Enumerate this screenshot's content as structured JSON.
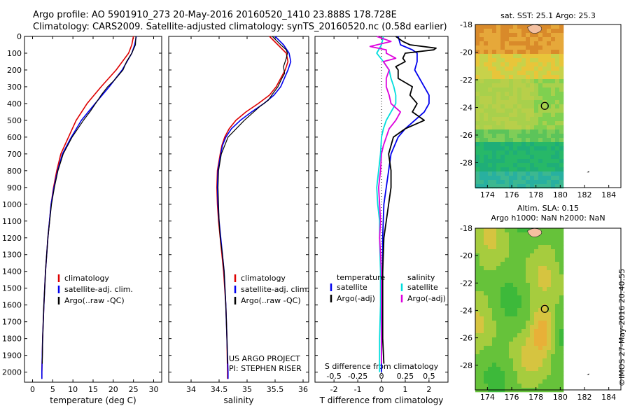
{
  "header": {
    "line1": "Argo profile: AO 5901910_273 20-May-2016 20160520_1410 23.888S 178.728E",
    "line2": "Climatology: CARS2009. Satellite-adjusted climatology: synTS_20160520.nc (0.58d earlier)"
  },
  "depth_ticks": [
    "0",
    "100",
    "200",
    "300",
    "400",
    "500",
    "600",
    "700",
    "800",
    "900",
    "1000",
    "1100",
    "1200",
    "1300",
    "1400",
    "1500",
    "1600",
    "1700",
    "1800",
    "1900",
    "2000"
  ],
  "colors": {
    "climatology": "#dd0000",
    "satellite": "#0000ee",
    "argo": "#000000",
    "sat_s": "#00dddd",
    "argo_s": "#dd00dd"
  },
  "chart_data": [
    {
      "type": "line",
      "xlabel": "temperature (deg C)",
      "xticks": [
        "0",
        "5",
        "10",
        "15",
        "20",
        "25",
        "30"
      ],
      "xlim": [
        -2,
        32
      ],
      "ylim": [
        2060,
        0
      ],
      "legend": [
        "climatology",
        "satellite-adj. clim.",
        "Argo(..raw -QC)"
      ],
      "series": [
        {
          "name": "climatology",
          "depth": [
            0,
            50,
            100,
            200,
            300,
            400,
            500,
            600,
            700,
            800,
            900,
            1000,
            1200,
            1400,
            1600,
            1800,
            2000,
            2040
          ],
          "values": [
            25.0,
            24.6,
            23.8,
            20.7,
            17.0,
            13.5,
            10.8,
            8.9,
            7.0,
            6.0,
            5.2,
            4.6,
            3.8,
            3.2,
            2.8,
            2.5,
            2.3,
            2.3
          ]
        },
        {
          "name": "satellite-adj. clim.",
          "depth": [
            0,
            50,
            100,
            200,
            300,
            400,
            500,
            600,
            700,
            800,
            900,
            1000,
            1200,
            1400,
            1600,
            1800,
            2000,
            2040
          ],
          "values": [
            25.7,
            25.3,
            24.6,
            22.2,
            19.0,
            15.5,
            12.1,
            9.6,
            7.4,
            6.2,
            5.3,
            4.6,
            3.8,
            3.2,
            2.8,
            2.5,
            2.3,
            2.3
          ]
        },
        {
          "name": "Argo(..raw -QC)",
          "depth": [
            0,
            50,
            100,
            150,
            200,
            260,
            300,
            350,
            400,
            450,
            500,
            600,
            700,
            800,
            900,
            1000,
            1200,
            1400,
            1600,
            1800,
            1950
          ],
          "values": [
            25.6,
            25.5,
            24.6,
            23.3,
            22.4,
            20.3,
            18.6,
            17.0,
            15.6,
            14.2,
            12.6,
            9.8,
            7.6,
            6.3,
            5.4,
            4.7,
            3.8,
            3.2,
            2.8,
            2.5,
            2.4
          ]
        }
      ]
    },
    {
      "type": "line",
      "xlabel": "salinity",
      "xticks": [
        "34",
        "34.5",
        "35",
        "35.5",
        "36"
      ],
      "xlim": [
        33.6,
        36.1
      ],
      "ylim": [
        2060,
        0
      ],
      "legend": [
        "climatology",
        "satellite-adj. clim.",
        "Argo(..raw -QC)"
      ],
      "annotation": [
        "US ARGO PROJECT",
        "PI: STEPHEN RISER"
      ],
      "series": [
        {
          "name": "climatology",
          "depth": [
            0,
            50,
            100,
            150,
            200,
            300,
            350,
            400,
            450,
            500,
            550,
            600,
            650,
            700,
            800,
            900,
            1000,
            1100,
            1200,
            1300,
            1400,
            1600,
            1800,
            2000,
            2040
          ],
          "values": [
            35.4,
            35.55,
            35.7,
            35.73,
            35.68,
            35.52,
            35.4,
            35.2,
            34.98,
            34.8,
            34.68,
            34.6,
            34.55,
            34.52,
            34.47,
            34.46,
            34.47,
            34.49,
            34.52,
            34.55,
            34.58,
            34.62,
            34.64,
            34.65,
            34.65
          ]
        },
        {
          "name": "satellite-adj. clim.",
          "depth": [
            0,
            50,
            100,
            150,
            200,
            300,
            350,
            400,
            450,
            500,
            550,
            600,
            650,
            700,
            800,
            900,
            1000,
            1100,
            1200,
            1300,
            1400,
            1600,
            1800,
            2000,
            2040
          ],
          "values": [
            35.5,
            35.65,
            35.75,
            35.78,
            35.73,
            35.6,
            35.48,
            35.3,
            35.08,
            34.88,
            34.72,
            34.62,
            34.56,
            34.53,
            34.48,
            34.47,
            34.48,
            34.5,
            34.53,
            34.56,
            34.59,
            34.62,
            34.64,
            34.66,
            34.66
          ]
        },
        {
          "name": "Argo(..raw -QC)",
          "depth": [
            0,
            50,
            80,
            100,
            130,
            180,
            220,
            250,
            300,
            350,
            380,
            420,
            500,
            600,
            700,
            800,
            900,
            1000,
            1100,
            1200,
            1300,
            1400,
            1600,
            1800,
            1950
          ],
          "values": [
            35.45,
            35.6,
            35.7,
            35.72,
            35.7,
            35.65,
            35.67,
            35.62,
            35.55,
            35.44,
            35.38,
            35.22,
            34.95,
            34.66,
            34.54,
            34.49,
            34.48,
            34.49,
            34.5,
            34.52,
            34.56,
            34.59,
            34.62,
            34.64,
            34.65
          ]
        }
      ]
    },
    {
      "type": "line",
      "xlabel": "T difference from climatology",
      "xlabel2": "S difference from climatology",
      "xticks": [
        "-2",
        "-1",
        "0",
        "1",
        "2"
      ],
      "xticks2": [
        "-0.5",
        "-0.25",
        "0",
        "0.25",
        "0.5"
      ],
      "xlim": [
        -2.8,
        2.8
      ],
      "ylim": [
        2060,
        0
      ],
      "legend_left_title": "temperature",
      "legend_right_title": "salinity",
      "legend": [
        "satellite",
        "Argo(-adj)",
        "satellite",
        "Argo(-adj)"
      ],
      "series": [
        {
          "name": "satellite",
          "depth": [
            0,
            50,
            80,
            100,
            150,
            200,
            300,
            350,
            400,
            450,
            500,
            550,
            600,
            700,
            800,
            900,
            1000,
            1200,
            1400,
            1600,
            1800,
            2000
          ],
          "values": [
            0.7,
            0.8,
            1.3,
            1.5,
            1.5,
            1.4,
            1.8,
            2.0,
            2.0,
            1.8,
            1.4,
            1.0,
            0.7,
            0.4,
            0.3,
            0.2,
            0.1,
            0.05,
            0.05,
            0.0,
            0.0,
            0.0
          ]
        },
        {
          "name": "Argo(-adj)",
          "depth": [
            0,
            30,
            50,
            70,
            80,
            100,
            130,
            150,
            180,
            200,
            250,
            300,
            350,
            400,
            450,
            500,
            550,
            600,
            650,
            700,
            800,
            900,
            1000,
            1100,
            1200,
            1400,
            1600,
            1800,
            1950
          ],
          "values": [
            0.6,
            0.9,
            1.2,
            2.3,
            2.2,
            1.0,
            0.9,
            1.0,
            0.6,
            0.7,
            0.7,
            1.3,
            1.2,
            1.5,
            1.3,
            1.8,
            1.0,
            0.5,
            0.4,
            0.3,
            0.4,
            0.4,
            0.3,
            0.2,
            0.1,
            0.05,
            0.05,
            0.05,
            0.1
          ]
        },
        {
          "name": "satellite",
          "depth": [
            0,
            50,
            100,
            150,
            200,
            250,
            300,
            350,
            400,
            450,
            500,
            550,
            600,
            700,
            800,
            900,
            1000,
            1100,
            1200,
            1400,
            1600,
            1800,
            2000
          ],
          "values": [
            0.02,
            0.0,
            -0.05,
            0.02,
            0.08,
            0.1,
            0.13,
            0.15,
            0.15,
            0.1,
            0.05,
            0.02,
            0.0,
            -0.01,
            -0.03,
            -0.05,
            -0.04,
            -0.02,
            -0.02,
            -0.01,
            -0.01,
            -0.02,
            -0.02
          ]
        },
        {
          "name": "Argo(-adj)",
          "depth": [
            0,
            30,
            60,
            80,
            100,
            130,
            150,
            200,
            250,
            300,
            350,
            400,
            450,
            500,
            550,
            600,
            650,
            700,
            800,
            900,
            1000,
            1100,
            1200,
            1400,
            1600,
            1800,
            1950
          ],
          "values": [
            -0.05,
            0.1,
            -0.12,
            0.05,
            0.05,
            0.15,
            0.02,
            0.08,
            0.05,
            0.05,
            0.08,
            0.1,
            0.2,
            0.15,
            0.08,
            0.05,
            0.02,
            0.0,
            -0.01,
            -0.03,
            -0.02,
            -0.01,
            -0.02,
            0.0,
            0.0,
            0.0,
            0.0
          ]
        }
      ]
    },
    {
      "type": "heatmap",
      "title": "sat. SST: 25.1  Argo: 25.3",
      "xticks": [
        "174",
        "176",
        "178",
        "180",
        "182",
        "184"
      ],
      "yticks": [
        "-18",
        "-20",
        "-22",
        "-24",
        "-26",
        "-28"
      ],
      "xlim": [
        173,
        185
      ],
      "ylim": [
        -29.8,
        -18
      ],
      "marker": {
        "lon": 178.728,
        "lat": -23.888
      }
    },
    {
      "type": "heatmap",
      "title": "Altim. SLA: 0.15",
      "subtitle": "Argo h1000: NaN h2000: NaN",
      "xticks": [
        "174",
        "176",
        "178",
        "180",
        "182",
        "184"
      ],
      "yticks": [
        "-18",
        "-20",
        "-22",
        "-24",
        "-26",
        "-28"
      ],
      "xlim": [
        173,
        185
      ],
      "ylim": [
        -29.8,
        -18
      ],
      "marker": {
        "lon": 178.728,
        "lat": -23.888
      }
    }
  ],
  "stamp": "©IMOS 27-May-2016 20:40:55"
}
